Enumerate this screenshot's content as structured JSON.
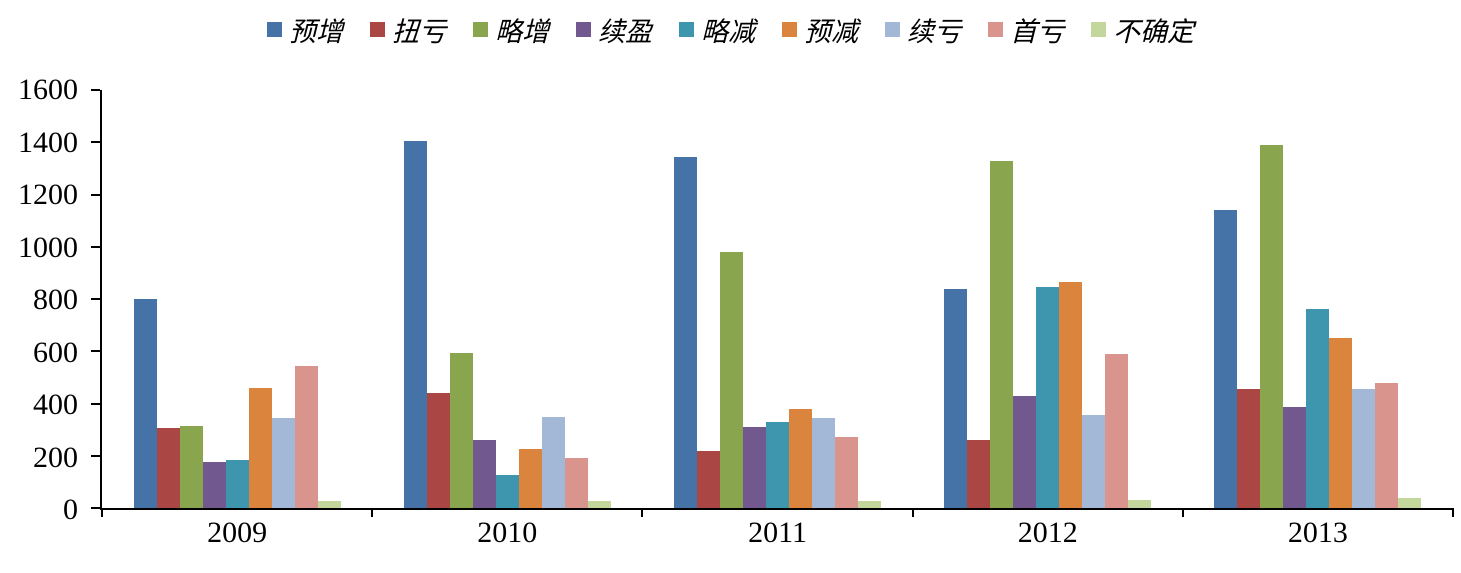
{
  "chart_data": {
    "type": "bar",
    "title": "",
    "xlabel": "",
    "ylabel": "",
    "categories": [
      "2009",
      "2010",
      "2011",
      "2012",
      "2013"
    ],
    "series": [
      {
        "name": "预增",
        "color": "#4572A7",
        "values": [
          800,
          1405,
          1345,
          840,
          1140
        ]
      },
      {
        "name": "扭亏",
        "color": "#AA4643",
        "values": [
          305,
          440,
          220,
          260,
          455
        ]
      },
      {
        "name": "略增",
        "color": "#89A54E",
        "values": [
          315,
          595,
          980,
          1330,
          1390
        ]
      },
      {
        "name": "续盈",
        "color": "#71588F",
        "values": [
          175,
          260,
          310,
          430,
          385
        ]
      },
      {
        "name": "略减",
        "color": "#3D96AE",
        "values": [
          185,
          125,
          330,
          845,
          760
        ]
      },
      {
        "name": "预减",
        "color": "#DB843D",
        "values": [
          460,
          225,
          380,
          865,
          650
        ]
      },
      {
        "name": "续亏",
        "color": "#A3B8D7",
        "values": [
          345,
          350,
          345,
          355,
          455
        ]
      },
      {
        "name": "首亏",
        "color": "#D9958D",
        "values": [
          545,
          190,
          270,
          590,
          480
        ]
      },
      {
        "name": "不确定",
        "color": "#C3D69B",
        "values": [
          25,
          25,
          25,
          30,
          40
        ]
      }
    ],
    "ylim": [
      0,
      1600
    ],
    "ytick_step": 200,
    "legend_position": "top",
    "grid": false
  }
}
